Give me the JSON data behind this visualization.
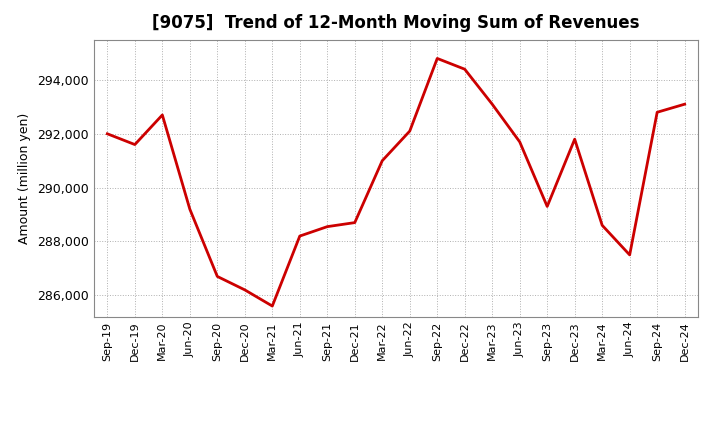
{
  "title": "[9075]  Trend of 12-Month Moving Sum of Revenues",
  "ylabel": "Amount (million yen)",
  "line_color": "#cc0000",
  "line_width": 2.0,
  "background_color": "#ffffff",
  "grid_color": "#b0b0b0",
  "x_labels": [
    "Sep-19",
    "Dec-19",
    "Mar-20",
    "Jun-20",
    "Sep-20",
    "Dec-20",
    "Mar-21",
    "Jun-21",
    "Sep-21",
    "Dec-21",
    "Mar-22",
    "Jun-22",
    "Sep-22",
    "Dec-22",
    "Mar-23",
    "Jun-23",
    "Sep-23",
    "Dec-23",
    "Mar-24",
    "Jun-24",
    "Sep-24",
    "Dec-24"
  ],
  "y_values": [
    292000,
    291600,
    292700,
    289200,
    286700,
    286200,
    285600,
    288200,
    288550,
    288700,
    291000,
    292100,
    294800,
    294400,
    293100,
    291700,
    289300,
    291800,
    288600,
    287500,
    292800,
    293100
  ],
  "ylim": [
    285200,
    295500
  ],
  "yticks": [
    286000,
    288000,
    290000,
    292000,
    294000
  ],
  "title_fontsize": 12,
  "ylabel_fontsize": 9,
  "tick_fontsize": 9,
  "xtick_fontsize": 8
}
